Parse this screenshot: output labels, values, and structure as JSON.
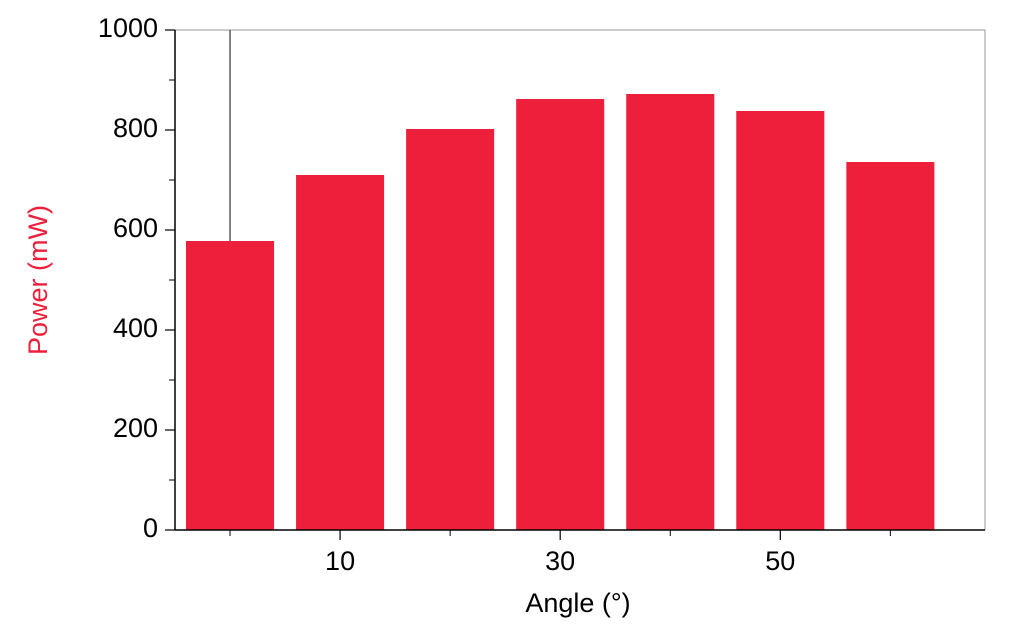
{
  "chart_data": {
    "type": "bar",
    "x": [
      0,
      10,
      20,
      30,
      40,
      50,
      60
    ],
    "values": [
      578,
      710,
      802,
      862,
      872,
      838,
      736
    ],
    "color": "#ee1f3b",
    "bar_width": 8,
    "xlabel": "Angle (°)",
    "ylabel": "Power (mW)",
    "ylabel_color": "#ee1f3b",
    "xlim": [
      -5,
      68.6
    ],
    "xticks": [
      10,
      30,
      50
    ],
    "xminorticks": [
      0,
      20,
      40,
      60
    ],
    "ylim": [
      0,
      1000
    ],
    "yticks": [
      0,
      200,
      400,
      600,
      800,
      1000
    ],
    "yminorticks": [
      100,
      300,
      500,
      700,
      900
    ]
  }
}
